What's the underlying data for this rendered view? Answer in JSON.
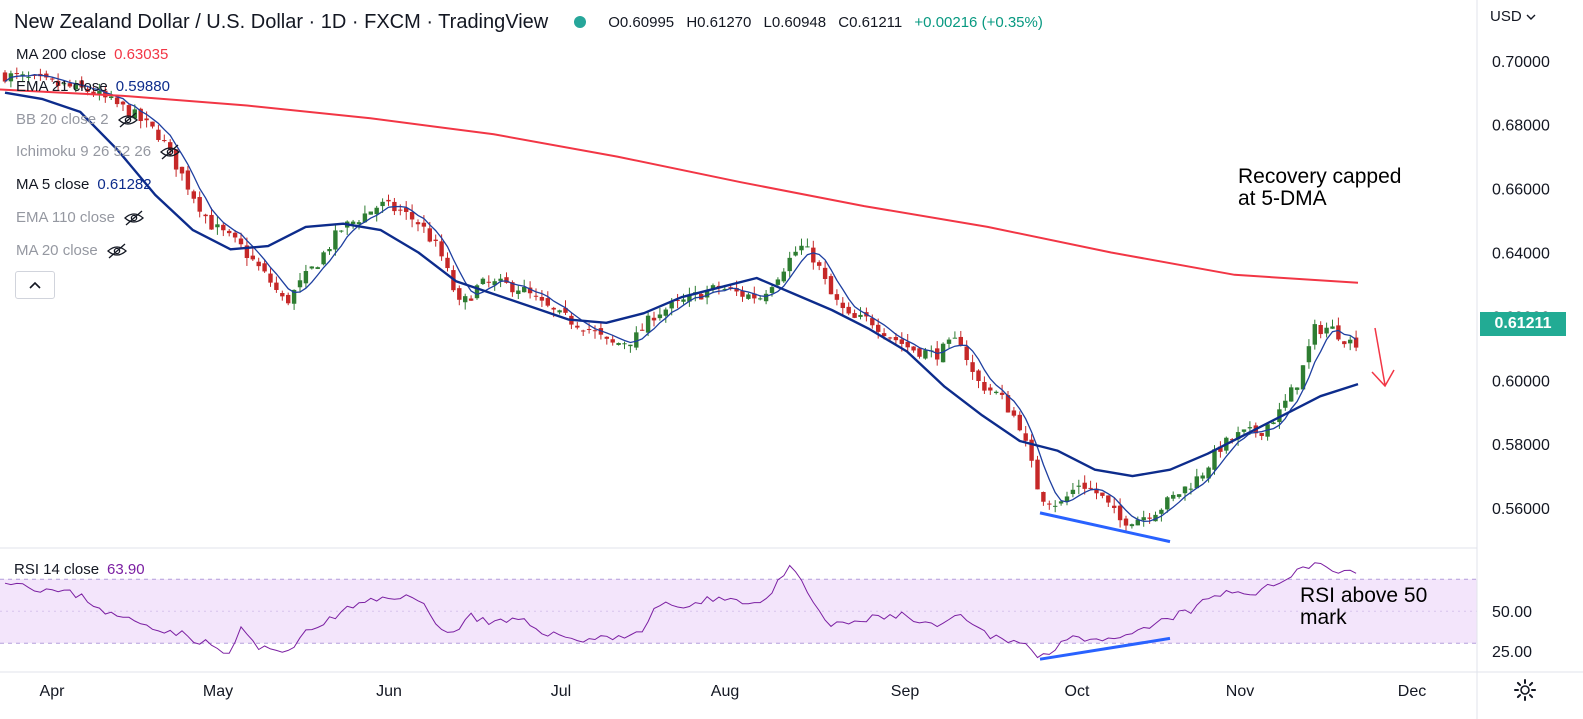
{
  "header": {
    "title": "New Zealand Dollar / U.S. Dollar · 1D · FXCM · TradingView",
    "open": "O0.60995",
    "high": "H0.61270",
    "low": "L0.60948",
    "close": "C0.61211",
    "change": "+0.00216 (+0.35%)"
  },
  "currency_label": "USD",
  "last_price": "0.61211",
  "indicators": [
    {
      "name": "MA 200 close",
      "value": "0.63035",
      "color": "#f23645",
      "visible": true
    },
    {
      "name": "EMA 21 close",
      "value": "0.59880",
      "color": "#0d2c8c",
      "visible": true
    },
    {
      "name": "BB 20 close 2",
      "value": "",
      "color": "#9598a1",
      "visible": false
    },
    {
      "name": "Ichimoku 9 26 52 26",
      "value": "",
      "color": "#9598a1",
      "visible": false
    },
    {
      "name": "MA 5 close",
      "value": "0.61282",
      "color": "#0d2c8c",
      "visible": true
    },
    {
      "name": "EMA 110 close",
      "value": "",
      "color": "#9598a1",
      "visible": false
    },
    {
      "name": "MA 20 close",
      "value": "",
      "color": "#9598a1",
      "visible": false
    }
  ],
  "rsi_legend": {
    "name": "RSI 14 close",
    "value": "63.90"
  },
  "annotations": {
    "top": [
      "Recovery capped",
      "at 5-DMA"
    ],
    "rsi": [
      "RSI above 50",
      "mark"
    ]
  },
  "colors": {
    "up": "#26a69a",
    "up_body": "#2e7d32",
    "down": "#c62828",
    "ma200": "#f23645",
    "ema21": "#0d2c8c",
    "ma5": "#1e3fa0",
    "rsi": "#7b1fa2",
    "rsi_band": "#f3e5fb",
    "trend": "#2962ff",
    "arrow": "#f23645"
  },
  "chart_data": {
    "type": "candlestick",
    "price_axis": {
      "ylim": [
        0.5475,
        0.7065
      ],
      "ticks": [
        "0.70000",
        "0.68000",
        "0.66000",
        "0.64000",
        "0.62000",
        "0.60000",
        "0.58000",
        "0.56000"
      ]
    },
    "time_axis": {
      "labels": [
        "Apr",
        "May",
        "Jun",
        "Jul",
        "Aug",
        "Sep",
        "Oct",
        "Nov",
        "Dec"
      ]
    },
    "rsi_axis": {
      "ylim": [
        12,
        87
      ],
      "ticks": [
        "50.00",
        "25.00"
      ],
      "band": [
        30,
        70
      ]
    },
    "series": {
      "ma200": [
        0.691,
        0.689,
        0.686,
        0.682,
        0.677,
        0.67,
        0.662,
        0.6545,
        0.648,
        0.64,
        0.633,
        0.6305
      ],
      "ema21": [
        0.69,
        0.688,
        0.684,
        0.672,
        0.658,
        0.647,
        0.641,
        0.642,
        0.648,
        0.649,
        0.647,
        0.64,
        0.631,
        0.627,
        0.623,
        0.619,
        0.618,
        0.621,
        0.626,
        0.629,
        0.632,
        0.627,
        0.622,
        0.616,
        0.609,
        0.598,
        0.589,
        0.581,
        0.578,
        0.572,
        0.57,
        0.572,
        0.577,
        0.583,
        0.589,
        0.595,
        0.5988
      ]
    },
    "rsi_last": 63.9
  }
}
